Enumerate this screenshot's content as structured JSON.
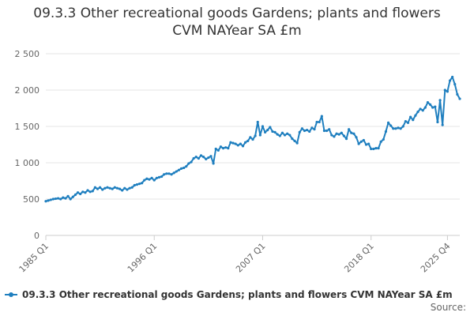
{
  "chart_data": {
    "type": "line",
    "title_lines": [
      "09.3.3 Other recreational goods Gardens; plants and flowers",
      "CVM NAYear SA £m"
    ],
    "xlabel": "",
    "ylabel": "",
    "ylim": [
      0,
      2500
    ],
    "y_ticks": [
      0,
      500,
      1000,
      1500,
      2000,
      2500
    ],
    "y_tick_labels": [
      "0",
      "500",
      "1 000",
      "1 500",
      "2 000",
      "2 500"
    ],
    "x_tick_labels": [
      "1985 Q1",
      "1996 Q1",
      "2007 Q1",
      "2018 Q1",
      "2025 Q4"
    ],
    "x_tick_index": [
      0,
      44,
      88,
      132,
      163
    ],
    "grid": true,
    "legend_position": "bottom-left",
    "color": "#1f7fbf",
    "series": [
      {
        "name": "09.3.3 Other recreational goods Gardens; plants and flowers CVM NAYear SA £m",
        "start": "1985 Q1",
        "frequency": "quarterly",
        "values": [
          470,
          480,
          490,
          500,
          505,
          510,
          500,
          520,
          510,
          540,
          500,
          530,
          560,
          590,
          570,
          600,
          590,
          620,
          600,
          610,
          660,
          640,
          660,
          630,
          650,
          660,
          650,
          640,
          660,
          650,
          640,
          620,
          650,
          630,
          650,
          660,
          690,
          700,
          710,
          720,
          760,
          780,
          770,
          790,
          760,
          790,
          800,
          810,
          840,
          850,
          850,
          840,
          860,
          880,
          900,
          920,
          930,
          950,
          990,
          1010,
          1060,
          1080,
          1060,
          1100,
          1080,
          1050,
          1070,
          1090,
          990,
          1190,
          1170,
          1220,
          1200,
          1210,
          1200,
          1280,
          1270,
          1260,
          1240,
          1260,
          1230,
          1280,
          1300,
          1350,
          1320,
          1370,
          1560,
          1380,
          1500,
          1420,
          1450,
          1490,
          1430,
          1420,
          1390,
          1370,
          1410,
          1380,
          1400,
          1380,
          1330,
          1300,
          1270,
          1420,
          1470,
          1440,
          1450,
          1430,
          1480,
          1460,
          1560,
          1560,
          1640,
          1440,
          1440,
          1460,
          1380,
          1360,
          1400,
          1390,
          1410,
          1370,
          1330,
          1460,
          1410,
          1400,
          1350,
          1260,
          1290,
          1310,
          1250,
          1260,
          1190,
          1190,
          1200,
          1200,
          1290,
          1320,
          1430,
          1550,
          1510,
          1470,
          1470,
          1480,
          1470,
          1500,
          1570,
          1550,
          1630,
          1590,
          1650,
          1700,
          1740,
          1720,
          1760,
          1830,
          1800,
          1760,
          1770,
          1560,
          1860,
          1520,
          2000,
          1980,
          2130,
          2180,
          2080,
          1940,
          1880
        ]
      }
    ]
  },
  "legend": {
    "label": "09.3.3 Other recreational goods Gardens; plants and flowers CVM NAYear SA £m"
  },
  "footer": {
    "source_label": "Source:"
  }
}
